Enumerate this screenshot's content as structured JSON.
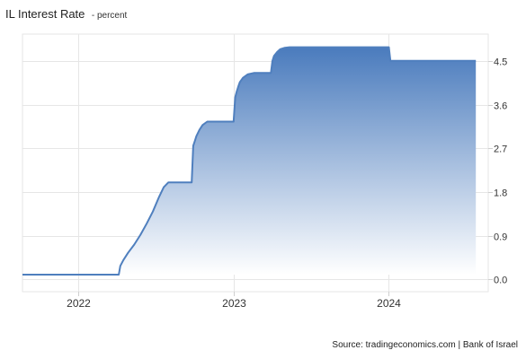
{
  "title": "IL Interest Rate",
  "subtitle": "- percent",
  "source": "Source: tradingeconomics.com | Bank of Israel",
  "colors": {
    "line": "#4f7fbe",
    "fill_top": "#4a7bbd",
    "fill_bottom": "#ffffff",
    "grid": "#e6e6e6",
    "axis": "#cfcfcf"
  },
  "chart_data": {
    "type": "area",
    "title": "IL Interest Rate",
    "subtitle": "- percent",
    "xlabel": "",
    "ylabel": "",
    "x_ticks": [
      "2022",
      "2023",
      "2024"
    ],
    "y_ticks": [
      "0.0",
      "0.9",
      "1.8",
      "2.7",
      "3.6",
      "4.5"
    ],
    "xlim": [
      2021.64,
      2024.64
    ],
    "ylim": [
      -0.25,
      5.05
    ],
    "y_axis_side": "right",
    "grid": true,
    "legend": "none",
    "series": [
      {
        "x": [
          2021.64,
          2022.26,
          2022.27,
          2022.29,
          2022.32,
          2022.36,
          2022.4,
          2022.44,
          2022.48,
          2022.52,
          2022.55,
          2022.58,
          2022.61,
          2022.62,
          2022.63,
          2022.64,
          2022.66,
          2022.69,
          2022.73,
          2022.74,
          2022.75,
          2022.76,
          2022.78,
          2022.8,
          2022.83,
          2023.0,
          2023.01,
          2023.02,
          2023.03,
          2023.04,
          2023.06,
          2023.09,
          2023.13,
          2023.24,
          2023.25,
          2023.26,
          2023.28,
          2023.3,
          2023.33,
          2023.36,
          2023.4,
          2024.0,
          2024.01,
          2024.56
        ],
        "y": [
          0.1,
          0.1,
          0.28,
          0.4,
          0.55,
          0.72,
          0.92,
          1.15,
          1.4,
          1.7,
          1.9,
          2.0,
          2.0,
          2.0,
          2.0,
          2.0,
          2.0,
          2.0,
          2.0,
          2.75,
          2.85,
          2.95,
          3.08,
          3.18,
          3.25,
          3.25,
          3.75,
          3.87,
          3.97,
          4.06,
          4.15,
          4.22,
          4.25,
          4.25,
          4.5,
          4.6,
          4.68,
          4.74,
          4.77,
          4.78,
          4.78,
          4.78,
          4.5,
          4.5
        ]
      }
    ]
  }
}
